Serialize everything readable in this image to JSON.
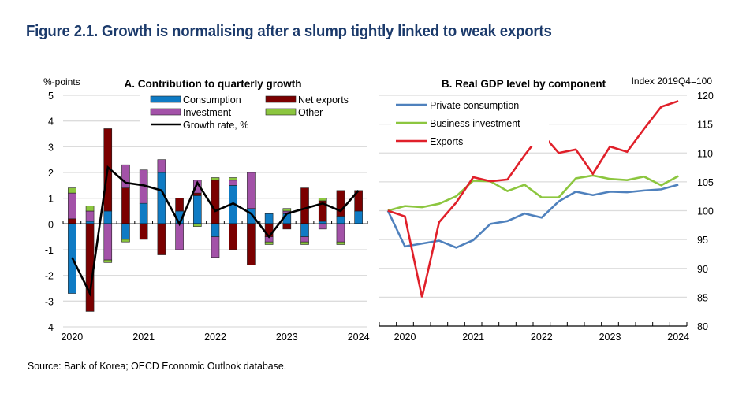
{
  "figure": {
    "title": "Figure 2.1. Growth is normalising after a slump tightly linked to weak exports",
    "source": "Source: Bank of Korea; OECD Economic Outlook database."
  },
  "chart_data": [
    {
      "type": "bar",
      "stacked": true,
      "title": "A. Contribution to quarterly growth",
      "ylabel": "%-points",
      "xlabel": "",
      "ylim": [
        -4,
        5
      ],
      "yticks": [
        "5",
        "4",
        "3",
        "2",
        "1",
        "0",
        "-1",
        "-2",
        "-3",
        "-4"
      ],
      "ytick_values": [
        5,
        4,
        3,
        2,
        1,
        0,
        -1,
        -2,
        -3,
        -4
      ],
      "xtick_labels": [
        "2020",
        "2021",
        "2022",
        "2023",
        "2024"
      ],
      "categories": [
        "2020Q1",
        "2020Q2",
        "2020Q3",
        "2020Q4",
        "2021Q1",
        "2021Q2",
        "2021Q3",
        "2021Q4",
        "2022Q1",
        "2022Q2",
        "2022Q3",
        "2022Q4",
        "2023Q1",
        "2023Q2",
        "2023Q3",
        "2023Q4",
        "2024Q1"
      ],
      "grid": true,
      "legend_position": "top",
      "series": [
        {
          "name": "Consumption",
          "color": "#0f7bc4",
          "values": [
            -2.7,
            0.1,
            0.5,
            -0.6,
            0.8,
            2.0,
            0.5,
            1.1,
            -0.5,
            1.5,
            0.6,
            0.4,
            0.4,
            -0.5,
            0.1,
            0.3,
            0.5
          ]
        },
        {
          "name": "Net exports",
          "color": "#7b0000",
          "values": [
            0.2,
            -3.4,
            3.2,
            1.4,
            -0.6,
            -1.2,
            0.5,
            0.1,
            1.7,
            -1.0,
            -1.6,
            -0.5,
            -0.2,
            1.4,
            0.8,
            1.0,
            0.8
          ]
        },
        {
          "name": "Investment",
          "color": "#a352a8",
          "values": [
            1.0,
            0.4,
            -1.4,
            0.9,
            1.3,
            0.5,
            -1.0,
            0.5,
            -0.8,
            0.2,
            1.4,
            -0.2,
            0.1,
            -0.2,
            -0.2,
            -0.7,
            0.0
          ]
        },
        {
          "name": "Other",
          "color": "#8cc63f",
          "values": [
            0.2,
            0.2,
            -0.1,
            -0.1,
            0.0,
            0.0,
            0.0,
            -0.1,
            0.1,
            0.1,
            0.0,
            -0.1,
            0.1,
            -0.1,
            0.1,
            -0.1,
            0.0
          ]
        }
      ],
      "line_series": {
        "name": "Growth rate, %",
        "color": "#000000",
        "values": [
          -1.3,
          -2.7,
          2.2,
          1.6,
          1.5,
          1.3,
          0.0,
          1.6,
          0.5,
          0.8,
          0.4,
          -0.5,
          0.4,
          0.6,
          0.8,
          0.5,
          1.3
        ]
      }
    },
    {
      "type": "line",
      "title": "B. Real GDP level by component",
      "ylabel": "Index 2019Q4=100",
      "xlabel": "",
      "ylim": [
        80,
        120
      ],
      "yticks": [
        "120",
        "115",
        "110",
        "105",
        "100",
        "95",
        "90",
        "85",
        "80"
      ],
      "ytick_values": [
        120,
        115,
        110,
        105,
        100,
        95,
        90,
        85,
        80
      ],
      "xtick_labels": [
        "2020",
        "2021",
        "2022",
        "2023",
        "2024"
      ],
      "x": [
        "2019Q4",
        "2020Q1",
        "2020Q2",
        "2020Q3",
        "2020Q4",
        "2021Q1",
        "2021Q2",
        "2021Q3",
        "2021Q4",
        "2022Q1",
        "2022Q2",
        "2022Q3",
        "2022Q4",
        "2023Q1",
        "2023Q2",
        "2023Q3",
        "2023Q4",
        "2024Q1"
      ],
      "grid": true,
      "legend_position": "top-left",
      "series": [
        {
          "name": "Private consumption",
          "color": "#4f81bd",
          "values": [
            100,
            93.8,
            94.3,
            94.8,
            93.6,
            94.9,
            97.7,
            98.2,
            99.5,
            98.8,
            101.6,
            103.3,
            102.7,
            103.3,
            103.2,
            103.5,
            103.7,
            104.5
          ]
        },
        {
          "name": "Business investment",
          "color": "#8cc63f",
          "values": [
            100,
            100.8,
            100.6,
            101.2,
            102.5,
            105.2,
            105.1,
            103.4,
            104.5,
            102.3,
            102.3,
            105.6,
            106.1,
            105.5,
            105.3,
            105.9,
            104.4,
            106.0
          ]
        },
        {
          "name": "Exports",
          "color": "#e0202a",
          "values": [
            100,
            99.0,
            85.0,
            98.0,
            101.4,
            105.8,
            105.1,
            105.4,
            109.6,
            113.4,
            110.0,
            110.6,
            106.4,
            111.1,
            110.2,
            114.2,
            118.0,
            119.0
          ]
        }
      ]
    }
  ]
}
